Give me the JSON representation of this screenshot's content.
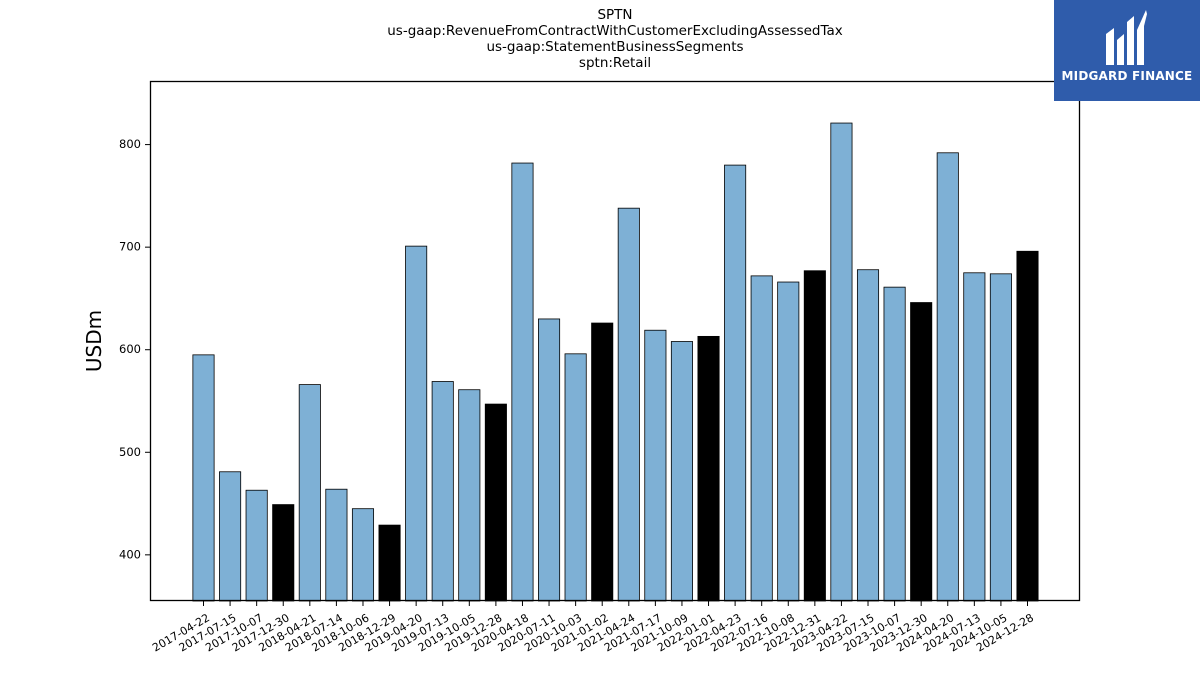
{
  "chart_data": {
    "type": "bar",
    "title_lines": [
      "SPTN",
      "us-gaap:RevenueFromContractWithCustomerExcludingAssessedTax",
      "us-gaap:StatementBusinessSegments",
      "sptn:Retail"
    ],
    "ylabel": "USDm",
    "xlabel": "",
    "ylim": [
      355,
      862
    ],
    "yticks": [
      400,
      500,
      600,
      700,
      800
    ],
    "grid": false,
    "colors": {
      "light": "#7eb0d5",
      "dark": "#000000",
      "edge": "#000000"
    },
    "categories": [
      "2017-04-22",
      "2017-07-15",
      "2017-10-07",
      "2017-12-30",
      "2018-04-21",
      "2018-07-14",
      "2018-10-06",
      "2018-12-29",
      "2019-04-20",
      "2019-07-13",
      "2019-10-05",
      "2019-12-28",
      "2020-04-18",
      "2020-07-11",
      "2020-10-03",
      "2021-01-02",
      "2021-04-24",
      "2021-07-17",
      "2021-10-09",
      "2022-01-01",
      "2022-04-23",
      "2022-07-16",
      "2022-10-08",
      "2022-12-31",
      "2023-04-22",
      "2023-07-15",
      "2023-10-07",
      "2023-12-30",
      "2024-04-20",
      "2024-07-13",
      "2024-10-05",
      "2024-12-28"
    ],
    "values": [
      595,
      481,
      463,
      449,
      566,
      464,
      445,
      429,
      701,
      569,
      561,
      547,
      782,
      630,
      596,
      626,
      738,
      619,
      608,
      613,
      780,
      672,
      666,
      677,
      821,
      678,
      661,
      646,
      792,
      675,
      674,
      696
    ],
    "highlight": [
      false,
      false,
      false,
      true,
      false,
      false,
      false,
      true,
      false,
      false,
      false,
      true,
      false,
      false,
      false,
      true,
      false,
      false,
      false,
      true,
      false,
      false,
      false,
      true,
      false,
      false,
      false,
      true,
      false,
      false,
      false,
      true
    ]
  },
  "logo": {
    "text": "MIDGARD FINANCE",
    "icon": "midgard-logo-icon"
  }
}
